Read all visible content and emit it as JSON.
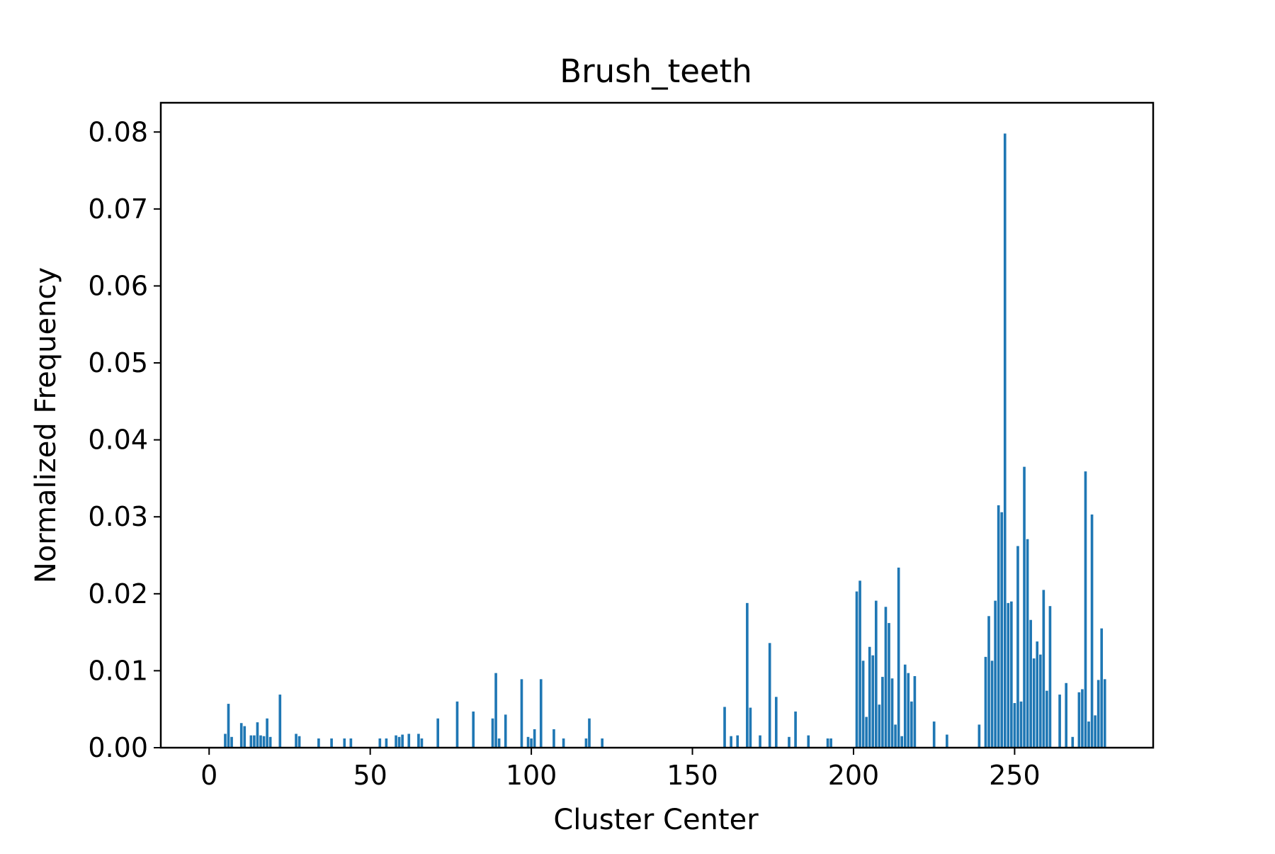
{
  "chart_data": {
    "type": "bar",
    "title": "Brush_teeth",
    "xlabel": "Cluster Center",
    "ylabel": "Normalized Frequency",
    "xlim": [
      -15,
      293
    ],
    "ylim": [
      0,
      0.0838
    ],
    "xticks": [
      0,
      50,
      100,
      150,
      200,
      250
    ],
    "xtick_labels": [
      "0",
      "50",
      "100",
      "150",
      "200",
      "250"
    ],
    "yticks": [
      0,
      0.01,
      0.02,
      0.03,
      0.04,
      0.05,
      0.06,
      0.07,
      0.08
    ],
    "ytick_labels": [
      "0.00",
      "0.01",
      "0.02",
      "0.03",
      "0.04",
      "0.05",
      "0.06",
      "0.07",
      "0.08"
    ],
    "grid": false,
    "bar_color": "#1f77b4",
    "x": [
      5,
      6,
      7,
      10,
      11,
      13,
      14,
      15,
      16,
      17,
      18,
      19,
      22,
      27,
      28,
      34,
      38,
      42,
      44,
      53,
      55,
      58,
      59,
      60,
      62,
      65,
      66,
      71,
      77,
      82,
      88,
      89,
      90,
      92,
      97,
      99,
      100,
      101,
      103,
      107,
      110,
      117,
      118,
      122,
      160,
      162,
      164,
      167,
      168,
      171,
      174,
      176,
      180,
      182,
      186,
      192,
      193,
      201,
      202,
      203,
      204,
      205,
      206,
      207,
      208,
      209,
      210,
      211,
      212,
      213,
      214,
      215,
      216,
      217,
      218,
      219,
      225,
      229,
      239,
      241,
      242,
      243,
      244,
      245,
      246,
      247,
      248,
      249,
      250,
      251,
      252,
      253,
      254,
      255,
      256,
      257,
      258,
      259,
      260,
      261,
      264,
      266,
      268,
      270,
      271,
      272,
      273,
      274,
      275,
      276,
      277,
      278
    ],
    "values": [
      0.0018,
      0.0057,
      0.0014,
      0.0032,
      0.0028,
      0.0016,
      0.0016,
      0.0033,
      0.0016,
      0.0015,
      0.0038,
      0.0014,
      0.0069,
      0.0018,
      0.0015,
      0.0012,
      0.0012,
      0.0012,
      0.0012,
      0.0012,
      0.0012,
      0.0016,
      0.0014,
      0.0017,
      0.0018,
      0.0018,
      0.0012,
      0.0038,
      0.006,
      0.0047,
      0.0038,
      0.0097,
      0.0012,
      0.0043,
      0.0089,
      0.0014,
      0.0012,
      0.0024,
      0.0089,
      0.0024,
      0.0012,
      0.0012,
      0.0038,
      0.0012,
      0.0053,
      0.0015,
      0.0016,
      0.0188,
      0.0052,
      0.0016,
      0.0136,
      0.0066,
      0.0014,
      0.0047,
      0.0016,
      0.0012,
      0.0012,
      0.0203,
      0.0217,
      0.0113,
      0.004,
      0.0131,
      0.012,
      0.0191,
      0.0056,
      0.0092,
      0.0183,
      0.0162,
      0.009,
      0.003,
      0.0234,
      0.0015,
      0.0108,
      0.0097,
      0.006,
      0.0093,
      0.0034,
      0.0017,
      0.003,
      0.0118,
      0.0171,
      0.0113,
      0.0191,
      0.0315,
      0.0306,
      0.0798,
      0.0188,
      0.019,
      0.0058,
      0.0262,
      0.006,
      0.0365,
      0.0271,
      0.0166,
      0.0116,
      0.0138,
      0.0121,
      0.0205,
      0.0074,
      0.0184,
      0.0069,
      0.0084,
      0.0014,
      0.0072,
      0.0076,
      0.0359,
      0.0034,
      0.0303,
      0.0042,
      0.0088,
      0.0155,
      0.0089
    ]
  }
}
